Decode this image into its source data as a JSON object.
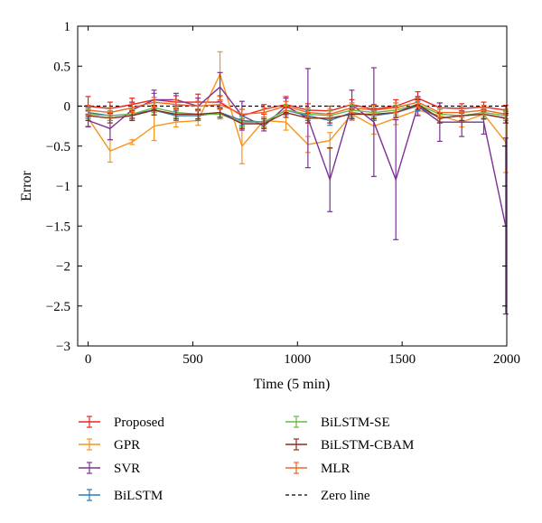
{
  "chart_data": {
    "type": "line",
    "xlabel": "Time (5 min)",
    "ylabel": "Error",
    "xlim": [
      -50,
      2000
    ],
    "ylim": [
      -3,
      1
    ],
    "xticks": [
      0,
      500,
      1000,
      1500,
      2000
    ],
    "yticks": [
      1,
      0.5,
      0,
      -0.5,
      -1,
      -1.5,
      -2,
      -2.5,
      -3
    ],
    "ytick_labels": [
      "1",
      "0.5",
      "0",
      "−0.5",
      "−1",
      "−1.5",
      "−2",
      "−2.5",
      "−3"
    ],
    "grid": false,
    "legend_position": "bottom",
    "x": [
      0,
      105,
      210,
      315,
      420,
      525,
      630,
      735,
      840,
      945,
      1050,
      1155,
      1260,
      1365,
      1470,
      1575,
      1680,
      1785,
      1890,
      1995
    ],
    "series": [
      {
        "name": "Proposed",
        "color": "#e8281e",
        "values": [
          0.0,
          -0.03,
          0.02,
          0.08,
          0.05,
          0.05,
          0.05,
          -0.12,
          -0.04,
          0.02,
          -0.05,
          -0.06,
          0.02,
          -0.04,
          0.0,
          0.1,
          -0.02,
          -0.03,
          -0.01,
          -0.05
        ],
        "errors": [
          0.12,
          0.08,
          0.08,
          0.08,
          0.08,
          0.1,
          0.08,
          0.08,
          0.06,
          0.1,
          0.08,
          0.06,
          0.06,
          0.06,
          0.08,
          0.08,
          0.06,
          0.06,
          0.06,
          0.06
        ]
      },
      {
        "name": "GPR",
        "color": "#f7941d",
        "values": [
          -0.15,
          -0.56,
          -0.45,
          -0.25,
          -0.2,
          -0.18,
          0.4,
          -0.5,
          -0.18,
          -0.2,
          -0.48,
          -0.43,
          -0.1,
          -0.25,
          -0.15,
          -0.05,
          -0.12,
          -0.2,
          -0.1,
          -0.45
        ],
        "errors": [
          0.1,
          0.14,
          0.03,
          0.18,
          0.06,
          0.06,
          0.28,
          0.22,
          0.1,
          0.1,
          0.1,
          0.1,
          0.08,
          0.1,
          0.08,
          0.06,
          0.08,
          0.06,
          0.06,
          0.38
        ]
      },
      {
        "name": "SVR",
        "color": "#7b3294",
        "values": [
          -0.18,
          -0.28,
          -0.05,
          0.08,
          0.08,
          0.0,
          0.24,
          -0.12,
          -0.25,
          0.0,
          -0.15,
          -0.92,
          0.02,
          -0.2,
          -0.92,
          0.0,
          -0.2,
          -0.2,
          -0.2,
          -1.5
        ],
        "errors": [
          0.08,
          0.14,
          0.1,
          0.12,
          0.08,
          0.1,
          0.18,
          0.18,
          0.06,
          0.1,
          0.62,
          0.4,
          0.18,
          0.68,
          0.75,
          0.12,
          0.24,
          0.18,
          0.15,
          1.1
        ]
      },
      {
        "name": "BiLSTM",
        "color": "#2b7bba",
        "values": [
          -0.08,
          -0.12,
          -0.1,
          -0.05,
          -0.12,
          -0.12,
          -0.08,
          -0.18,
          -0.2,
          -0.05,
          -0.12,
          -0.18,
          -0.08,
          -0.12,
          -0.08,
          0.0,
          -0.15,
          -0.12,
          -0.1,
          -0.15
        ],
        "errors": [
          0.06,
          0.06,
          0.06,
          0.06,
          0.06,
          0.06,
          0.06,
          0.06,
          0.06,
          0.06,
          0.06,
          0.06,
          0.06,
          0.06,
          0.06,
          0.06,
          0.06,
          0.06,
          0.06,
          0.06
        ]
      },
      {
        "name": "BiLSTM-SE",
        "color": "#6ab845",
        "values": [
          -0.1,
          -0.12,
          -0.1,
          -0.02,
          -0.08,
          -0.1,
          -0.1,
          -0.2,
          -0.2,
          -0.05,
          -0.1,
          -0.12,
          -0.05,
          -0.08,
          -0.05,
          0.02,
          -0.1,
          -0.12,
          -0.08,
          -0.12
        ],
        "errors": [
          0.06,
          0.06,
          0.06,
          0.06,
          0.06,
          0.06,
          0.06,
          0.06,
          0.06,
          0.06,
          0.06,
          0.06,
          0.06,
          0.06,
          0.06,
          0.06,
          0.06,
          0.06,
          0.06,
          0.06
        ]
      },
      {
        "name": "BiLSTM-CBAM",
        "color": "#8c2d19",
        "values": [
          -0.12,
          -0.15,
          -0.12,
          -0.05,
          -0.1,
          -0.1,
          -0.08,
          -0.22,
          -0.22,
          -0.08,
          -0.15,
          -0.15,
          -0.1,
          -0.1,
          -0.08,
          0.02,
          -0.15,
          -0.12,
          -0.1,
          -0.15
        ],
        "errors": [
          0.06,
          0.06,
          0.06,
          0.06,
          0.06,
          0.06,
          0.06,
          0.06,
          0.06,
          0.06,
          0.06,
          0.06,
          0.06,
          0.06,
          0.06,
          0.06,
          0.06,
          0.06,
          0.06,
          0.06
        ]
      },
      {
        "name": "MLR",
        "color": "#f26522",
        "values": [
          -0.05,
          -0.08,
          -0.02,
          0.05,
          0.02,
          0.0,
          0.02,
          -0.1,
          -0.08,
          0.0,
          -0.08,
          -0.1,
          -0.02,
          -0.05,
          -0.02,
          0.05,
          -0.08,
          -0.08,
          -0.05,
          -0.1
        ],
        "errors": [
          0.06,
          0.06,
          0.06,
          0.06,
          0.06,
          0.06,
          0.06,
          0.06,
          0.06,
          0.06,
          0.06,
          0.06,
          0.06,
          0.06,
          0.06,
          0.06,
          0.06,
          0.06,
          0.06,
          0.06
        ]
      }
    ],
    "reference_line": {
      "name": "Zero line",
      "y": 0,
      "color": "#000000",
      "dashed": true
    }
  }
}
